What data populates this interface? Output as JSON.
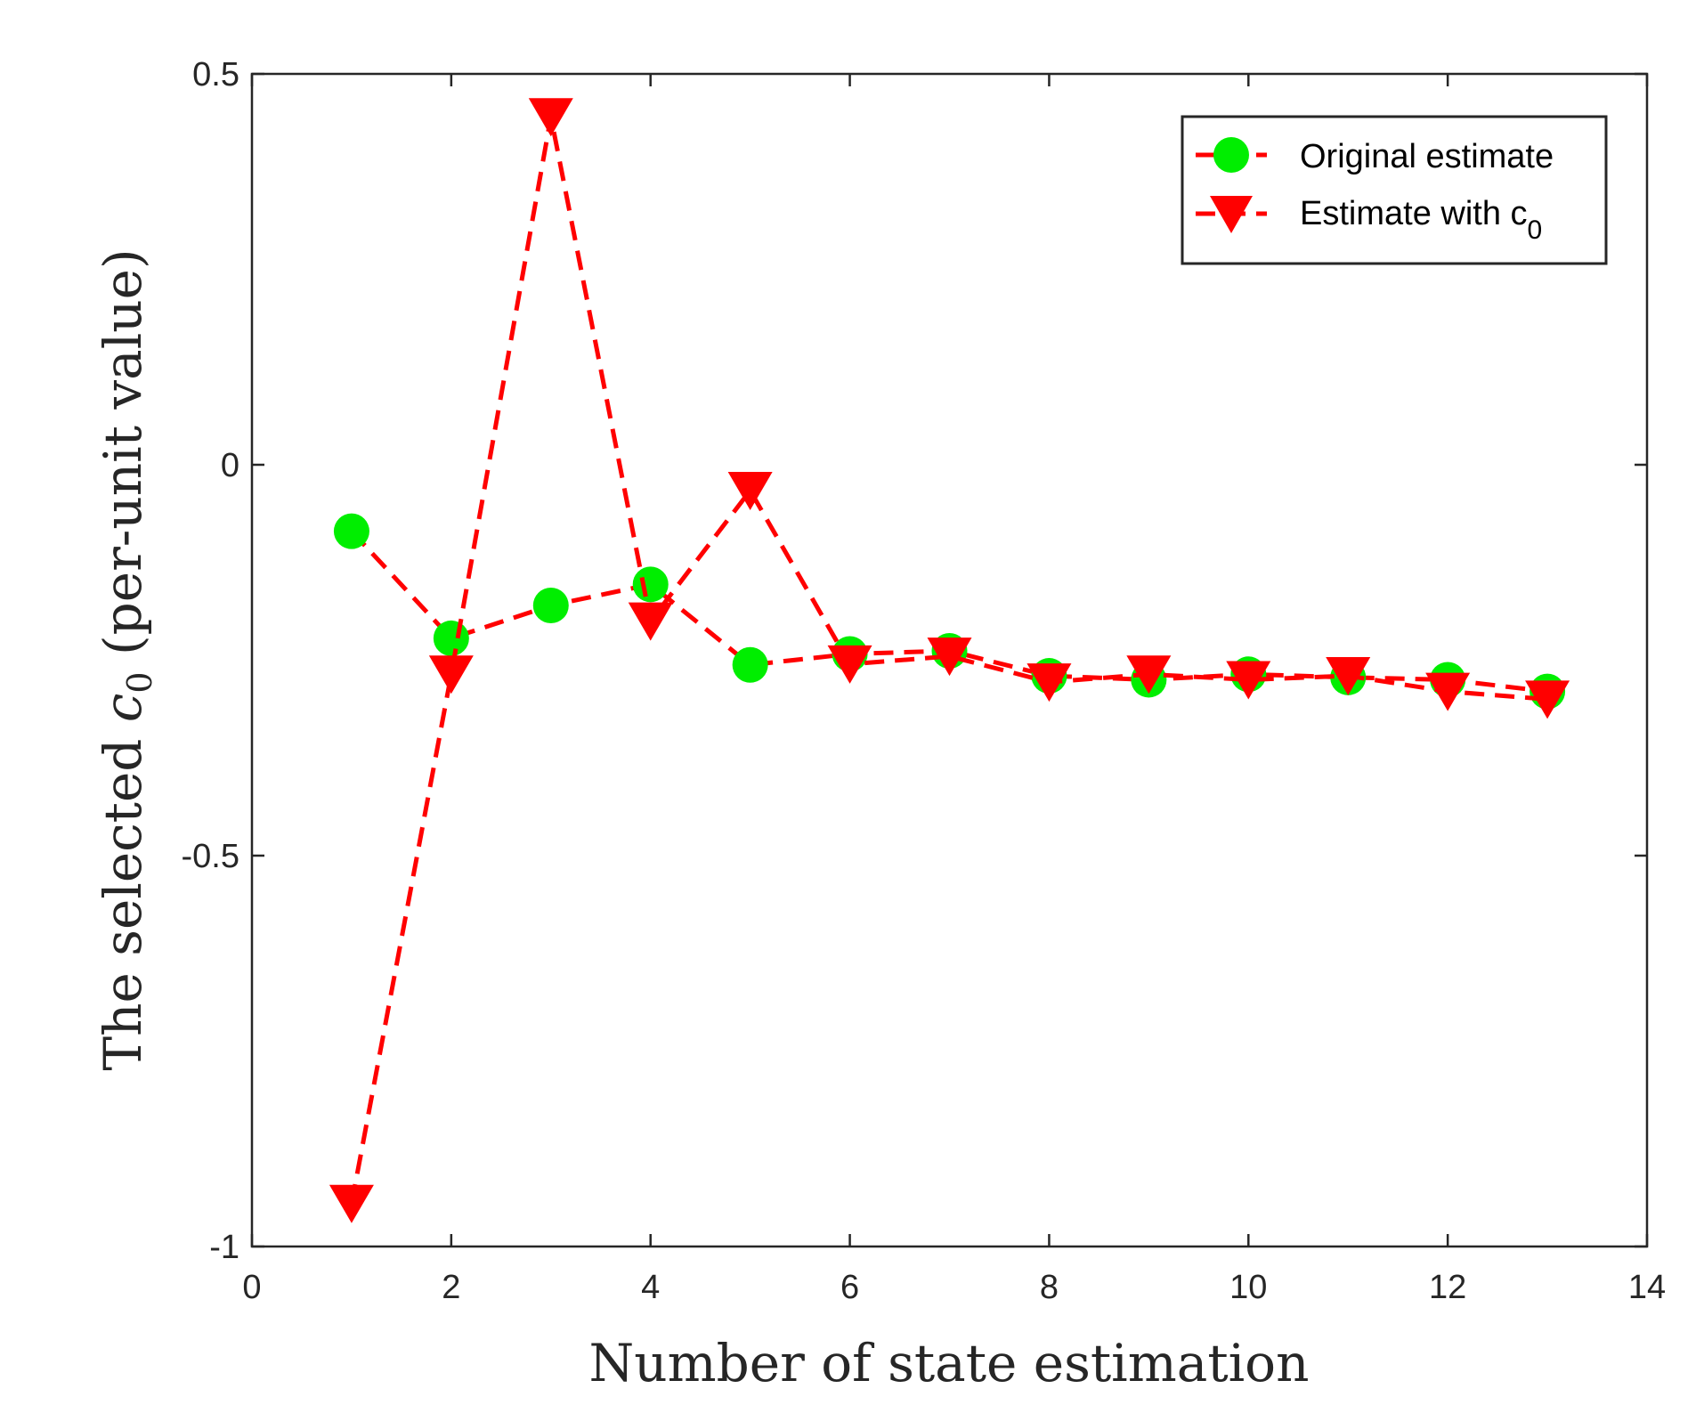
{
  "chart_data": {
    "type": "line",
    "title": "",
    "xlabel": "Number of state estimation",
    "ylabel": {
      "prefix": "The selected ",
      "symbol": "c",
      "subscript": "0",
      "suffix": " (per-unit value)"
    },
    "xlim": [
      0,
      14
    ],
    "ylim": [
      -1,
      0.5
    ],
    "xticks": [
      0,
      2,
      4,
      6,
      8,
      10,
      12,
      14
    ],
    "xtick_labels": [
      "0",
      "2",
      "4",
      "6",
      "8",
      "10",
      "12",
      "14"
    ],
    "yticks": [
      -1,
      -0.5,
      0,
      0.5
    ],
    "ytick_labels": [
      "-1",
      "-0.5",
      "0",
      "0.5"
    ],
    "grid": false,
    "legend_position": "top-right",
    "x": [
      1,
      2,
      3,
      4,
      5,
      6,
      7,
      8,
      9,
      10,
      11,
      12,
      13
    ],
    "series": [
      {
        "name": "Original estimate",
        "legend_label": "Original estimate",
        "marker": "circle",
        "line_style": "dashed",
        "line_color": "#ff0000",
        "marker_color": "#00ee00",
        "values": [
          -0.085,
          -0.222,
          -0.18,
          -0.153,
          -0.256,
          -0.242,
          -0.238,
          -0.27,
          -0.275,
          -0.268,
          -0.272,
          -0.275,
          -0.29
        ]
      },
      {
        "name": "Estimate with c0",
        "legend_label": "Estimate with c",
        "legend_subscript": "0",
        "marker": "triangle-down",
        "line_style": "dashed",
        "line_color": "#ff0000",
        "marker_color": "#ff0000",
        "values": [
          -0.945,
          -0.268,
          0.445,
          -0.2,
          -0.033,
          -0.255,
          -0.245,
          -0.278,
          -0.268,
          -0.275,
          -0.27,
          -0.29,
          -0.3
        ]
      }
    ]
  }
}
